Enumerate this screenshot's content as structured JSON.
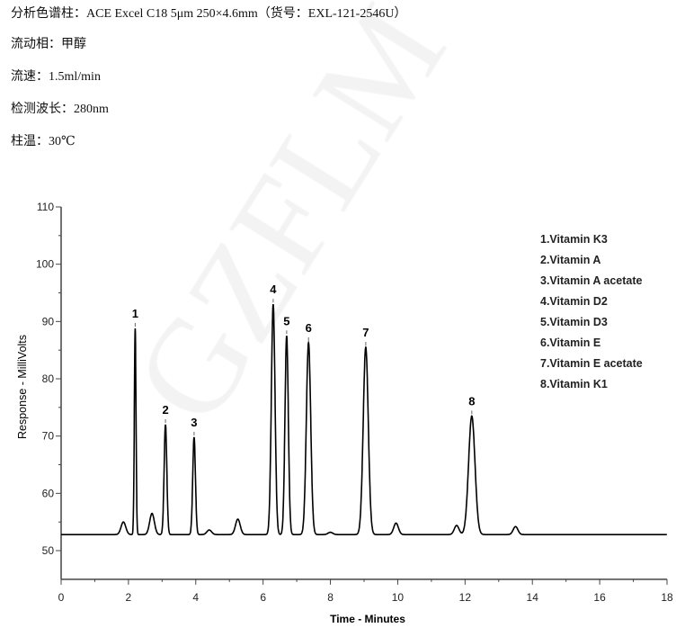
{
  "conditions": {
    "column": "分析色谱柱：ACE Excel C18 5μm 250×4.6mm（货号：EXL-121-2546U）",
    "mobile_phase": "流动相：甲醇",
    "flow_rate": "流速：1.5ml/min",
    "wavelength": "检测波长：280nm",
    "temperature": "柱温：30℃"
  },
  "watermark": "GZFLM",
  "chart_data": {
    "type": "line",
    "xlabel": "Time - Minutes",
    "ylabel": "Response - MilliVolts",
    "xlim": [
      0,
      18
    ],
    "ylim": [
      45,
      110
    ],
    "xticks": [
      0,
      2,
      4,
      6,
      8,
      10,
      12,
      14,
      16,
      18
    ],
    "yticks": [
      50,
      60,
      70,
      80,
      90,
      100,
      110
    ],
    "grid": false,
    "legend_position": "top-right",
    "baseline_mV": 52.8,
    "line_color": "#000000",
    "peaks": [
      {
        "label": "1",
        "name": "1.Vitamin K3",
        "rt": 2.2,
        "height": 88.8
      },
      {
        "label": "2",
        "name": "2.Vitamin A",
        "rt": 3.1,
        "height": 72.0
      },
      {
        "label": "3",
        "name": "3.Vitamin A acetate",
        "rt": 3.95,
        "height": 69.8
      },
      {
        "label": "4",
        "name": "4.Vitamin D2",
        "rt": 6.3,
        "height": 93.0
      },
      {
        "label": "5",
        "name": "5.Vitamin D3",
        "rt": 6.7,
        "height": 87.5
      },
      {
        "label": "6",
        "name": "6.Vitamin E",
        "rt": 7.35,
        "height": 86.3
      },
      {
        "label": "7",
        "name": "7.Vitamin E acetate",
        "rt": 9.05,
        "height": 85.5
      },
      {
        "label": "8",
        "name": "8.Vitamin K1",
        "rt": 12.2,
        "height": 73.5
      }
    ],
    "minor_peaks": [
      {
        "rt": 1.85,
        "height": 55.0
      },
      {
        "rt": 2.7,
        "height": 56.5
      },
      {
        "rt": 4.4,
        "height": 53.6
      },
      {
        "rt": 5.25,
        "height": 55.5
      },
      {
        "rt": 8.0,
        "height": 53.2
      },
      {
        "rt": 9.95,
        "height": 54.8
      },
      {
        "rt": 11.75,
        "height": 54.4
      },
      {
        "rt": 13.5,
        "height": 54.2
      }
    ]
  }
}
